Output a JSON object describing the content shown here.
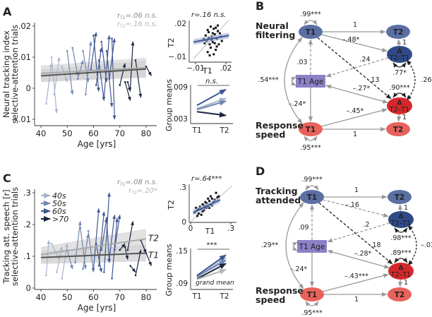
{
  "colors": {
    "g40": "#a9b4cc",
    "g50": "#7286b3",
    "g60": "#3f5692",
    "g70": "#1d2440",
    "node_blue": "#5b6fa3",
    "node_blue_dark": "#2f4a88",
    "node_age": "#8c80c6",
    "node_red": "#e8625c",
    "node_red_dark": "#d5282a",
    "path_gray": "#9a9a9a",
    "path_black": "#222222",
    "band": "#d9d9d9"
  },
  "chart_data": [
    {
      "panel": "A",
      "type": "line",
      "subtype": "longitudinal spaghetti (arrows T1→T2)",
      "letter": "A",
      "ylabel": [
        "Neural tracking index",
        "selective-attention trials"
      ],
      "xlabel": "Age [yrs]",
      "xticks": [
        "40",
        "50",
        "60",
        "70",
        "80"
      ],
      "xtick_values": [
        40,
        50,
        60,
        70,
        80
      ],
      "yticks": [
        ".02",
        ".01",
        "0",
        "−.01"
      ],
      "ytick_values": [
        0.02,
        0.01,
        0,
        -0.01
      ],
      "xlim": [
        38,
        83
      ],
      "ylim": [
        -0.012,
        0.021
      ],
      "r_labels": [
        {
          "r": "r",
          "sub": "T1",
          "value": "=.06 n.s."
        },
        {
          "r": "r",
          "sub": "T2",
          "value": "=.16 n.s."
        }
      ],
      "fit_T1": {
        "x": [
          40,
          80
        ],
        "y": [
          0.004,
          0.0062
        ]
      },
      "fit_T2": {
        "x": [
          40,
          80
        ],
        "y": [
          0.0048,
          0.0066
        ]
      },
      "subjects": [
        [
          42,
          -0.005,
          44,
          0.008,
          0
        ],
        [
          44,
          0.01,
          46,
          -0.008,
          0
        ],
        [
          45,
          -0.002,
          47,
          0.01,
          0
        ],
        [
          48,
          0.007,
          50,
          0.002,
          0
        ],
        [
          50,
          0.012,
          52,
          -0.002,
          1
        ],
        [
          52,
          0.013,
          54,
          0.004,
          1
        ],
        [
          54,
          0.003,
          56,
          0.009,
          1
        ],
        [
          56,
          0.012,
          58,
          0.002,
          1
        ],
        [
          57,
          -0.002,
          59,
          0.015,
          1
        ],
        [
          59,
          0.006,
          61,
          0.018,
          2
        ],
        [
          60,
          0.017,
          62,
          -0.001,
          2
        ],
        [
          61,
          0.001,
          63,
          0.013,
          2
        ],
        [
          62,
          0.009,
          64,
          -0.004,
          2
        ],
        [
          63,
          0.015,
          65,
          0.002,
          2
        ],
        [
          64,
          -0.003,
          66,
          0.017,
          2
        ],
        [
          65,
          0.012,
          67,
          -0.006,
          2
        ],
        [
          66,
          0.003,
          68,
          0.016,
          2
        ],
        [
          67,
          0.016,
          68,
          -0.01,
          2
        ],
        [
          70,
          0.001,
          72,
          0.008,
          3
        ],
        [
          72,
          0.002,
          74,
          -0.004,
          3
        ],
        [
          74,
          0.0,
          75,
          0.015,
          3
        ],
        [
          76,
          0.009,
          78,
          -0.003,
          3
        ],
        [
          80,
          0.007,
          82,
          0.004,
          3
        ],
        [
          73,
          0.002,
          74,
          -0.001,
          3
        ]
      ]
    },
    {
      "panel": "A-scatter",
      "type": "scatter",
      "title": "r=.16 n.s.",
      "xlabel": "T1",
      "ylabel": "T2",
      "xticks": [
        "−.01",
        ".02"
      ],
      "xtick_values": [
        -0.01,
        0.02
      ],
      "yticks": [
        ".02",
        "−.01"
      ],
      "ytick_values": [
        0.02,
        -0.01
      ],
      "xlim": [
        -0.012,
        0.023
      ],
      "ylim": [
        -0.013,
        0.021
      ],
      "fit": {
        "x": [
          -0.012,
          0.023
        ],
        "y": [
          0.003,
          0.009
        ]
      },
      "points": [
        [
          0.001,
          0.004
        ],
        [
          0.003,
          0.012
        ],
        [
          0.005,
          -0.002
        ],
        [
          0.006,
          0.008
        ],
        [
          0.008,
          0.015
        ],
        [
          0.002,
          -0.006
        ],
        [
          0.004,
          0.001
        ],
        [
          0.007,
          0.003
        ],
        [
          0.009,
          0.01
        ],
        [
          0.01,
          -0.004
        ],
        [
          0.011,
          0.006
        ],
        [
          0.012,
          0.013
        ],
        [
          0.0,
          0.009
        ],
        [
          -0.001,
          0.002
        ],
        [
          0.013,
          0.001
        ],
        [
          0.014,
          0.011
        ],
        [
          0.005,
          0.017
        ],
        [
          0.003,
          0.007
        ],
        [
          0.008,
          -0.008
        ],
        [
          0.01,
          0.016
        ],
        [
          0.006,
          0.005
        ],
        [
          0.015,
          0.008
        ],
        [
          0.002,
          0.014
        ],
        [
          0.009,
          0.002
        ],
        [
          0.004,
          -0.009
        ],
        [
          0.012,
          0.018
        ],
        [
          0.007,
          0.011
        ],
        [
          -0.002,
          0.006
        ],
        [
          0.011,
          -0.001
        ],
        [
          0.016,
          0.004
        ]
      ]
    },
    {
      "panel": "A-means",
      "type": "line",
      "ylabel": "Group means",
      "xticks": [
        "T1",
        "T2"
      ],
      "yticks": [
        ".009",
        ".003"
      ],
      "ytick_values": [
        0.009,
        0.003
      ],
      "ylim": [
        0.002,
        0.0095
      ],
      "annotation": "n.s.",
      "series": [
        {
          "group": "40s",
          "values": [
            0.0049,
            0.0068
          ]
        },
        {
          "group": "50s",
          "values": [
            0.0047,
            0.0063
          ]
        },
        {
          "group": "60s",
          "values": [
            0.0055,
            0.0085
          ]
        },
        {
          "group": ">70",
          "values": [
            0.0043,
            0.0036
          ]
        }
      ]
    },
    {
      "panel": "C",
      "type": "line",
      "subtype": "longitudinal spaghetti (arrows T1→T2)",
      "letter": "C",
      "ylabel": [
        "Tracking att. speech [r]",
        "selective-attention trials"
      ],
      "xlabel": "Age [yrs]",
      "xticks": [
        "40",
        "50",
        "60",
        "70",
        "80"
      ],
      "xtick_values": [
        40,
        50,
        60,
        70,
        80
      ],
      "yticks": [
        ".3",
        ".2",
        ".1",
        "0"
      ],
      "ytick_values": [
        0.3,
        0.2,
        0.1,
        0
      ],
      "xlim": [
        38,
        83
      ],
      "ylim": [
        0,
        0.31
      ],
      "r_labels": [
        {
          "r": "r",
          "sub": "T1",
          "value": "=.08 n.s."
        },
        {
          "r": "r",
          "sub": "T2",
          "value": "=.20*"
        }
      ],
      "legend": [
        "40s",
        "50s",
        "60s",
        ">70"
      ],
      "legend_placement": "top-left",
      "line_labels": [
        "T2",
        "T1"
      ],
      "fit_T1": {
        "x": [
          40,
          80
        ],
        "y": [
          0.096,
          0.11
        ]
      },
      "fit_T2": {
        "x": [
          40,
          80
        ],
        "y": [
          0.105,
          0.155
        ]
      },
      "subjects": [
        [
          42,
          0.04,
          43,
          0.15,
          0
        ],
        [
          44,
          0.14,
          47,
          0.09,
          0
        ],
        [
          46,
          0.05,
          48,
          0.13,
          0
        ],
        [
          48,
          0.03,
          50,
          0.14,
          0
        ],
        [
          50,
          0.12,
          52,
          0.06,
          1
        ],
        [
          53,
          0.08,
          55,
          0.21,
          1
        ],
        [
          55,
          0.19,
          57,
          0.06,
          1
        ],
        [
          56,
          0.06,
          58,
          0.17,
          1
        ],
        [
          58,
          0.18,
          60,
          0.05,
          1
        ],
        [
          60,
          0.06,
          62,
          0.25,
          2
        ],
        [
          61,
          0.14,
          63,
          0.05,
          2
        ],
        [
          62,
          0.07,
          64,
          0.24,
          2
        ],
        [
          63,
          0.12,
          65,
          0.22,
          2
        ],
        [
          64,
          0.05,
          66,
          0.3,
          2
        ],
        [
          65,
          0.22,
          66,
          0.08,
          2
        ],
        [
          66,
          0.09,
          68,
          0.23,
          2
        ],
        [
          67,
          0.03,
          69,
          0.22,
          2
        ],
        [
          68,
          0.12,
          70,
          0.23,
          2
        ],
        [
          70,
          0.12,
          72,
          0.14,
          3
        ],
        [
          72,
          0.13,
          73,
          0.09,
          3
        ],
        [
          73,
          0.12,
          75,
          0.21,
          3
        ],
        [
          74,
          0.07,
          76,
          0.05,
          3
        ],
        [
          76,
          0.04,
          78,
          0.12,
          3
        ],
        [
          78,
          0.15,
          80,
          0.11,
          3
        ],
        [
          80,
          0.11,
          82,
          0.07,
          3
        ]
      ]
    },
    {
      "panel": "C-scatter",
      "type": "scatter",
      "title": "r=.64***",
      "xlabel": "T1",
      "ylabel": "T2",
      "xticks": [
        "0",
        ".3"
      ],
      "xtick_values": [
        0,
        0.3
      ],
      "yticks": [
        ".3",
        "0"
      ],
      "ytick_values": [
        0.3,
        0
      ],
      "xlim": [
        0,
        0.31
      ],
      "ylim": [
        0,
        0.31
      ],
      "fit": {
        "x": [
          0.02,
          0.22
        ],
        "y": [
          0.08,
          0.19
        ]
      },
      "points": [
        [
          0.03,
          0.08
        ],
        [
          0.05,
          0.1
        ],
        [
          0.06,
          0.07
        ],
        [
          0.07,
          0.13
        ],
        [
          0.08,
          0.11
        ],
        [
          0.09,
          0.09
        ],
        [
          0.1,
          0.14
        ],
        [
          0.11,
          0.12
        ],
        [
          0.12,
          0.16
        ],
        [
          0.13,
          0.13
        ],
        [
          0.14,
          0.18
        ],
        [
          0.15,
          0.15
        ],
        [
          0.16,
          0.2
        ],
        [
          0.17,
          0.17
        ],
        [
          0.18,
          0.19
        ],
        [
          0.2,
          0.21
        ],
        [
          0.04,
          0.12
        ],
        [
          0.06,
          0.11
        ],
        [
          0.09,
          0.15
        ],
        [
          0.1,
          0.1
        ],
        [
          0.12,
          0.12
        ],
        [
          0.14,
          0.12
        ],
        [
          0.15,
          0.22
        ],
        [
          0.19,
          0.25
        ],
        [
          0.08,
          0.06
        ],
        [
          0.11,
          0.17
        ],
        [
          0.13,
          0.2
        ],
        [
          0.16,
          0.14
        ],
        [
          0.05,
          0.05
        ],
        [
          0.21,
          0.22
        ]
      ]
    },
    {
      "panel": "C-means",
      "type": "line",
      "ylabel": "Group means",
      "xticks": [
        "T1",
        "T2"
      ],
      "yticks": [
        ".15",
        ".09"
      ],
      "ytick_values": [
        0.15,
        0.09
      ],
      "ylim": [
        0.085,
        0.16
      ],
      "annotation": "***",
      "grand_mean_label": "grand mean",
      "series": [
        {
          "group": "40s",
          "values": [
            0.101,
            0.137
          ]
        },
        {
          "group": "50s",
          "values": [
            0.102,
            0.132
          ]
        },
        {
          "group": "60s",
          "values": [
            0.104,
            0.142
          ]
        },
        {
          "group": ">70",
          "values": [
            0.098,
            0.126
          ]
        },
        {
          "group": "grand mean",
          "values": [
            0.097,
            0.115
          ]
        }
      ]
    }
  ],
  "diagrams": [
    {
      "letter": "B",
      "top_construct": "Neural filtering",
      "top_construct_lines": [
        "Neural",
        "filtering"
      ],
      "bottom_construct_lines": [
        "Response",
        "speed"
      ],
      "nodes": {
        "t1a": "T1",
        "t2a": "T2",
        "da": [
          "Δ",
          "T2–T1"
        ],
        "age": "T1 Age",
        "db": [
          "Δ",
          "T2–T1"
        ],
        "t1b": "T1",
        "t2b": "T2"
      },
      "edges": [
        {
          "from": "t1a",
          "to": "t2a",
          "label": "1",
          "style": "solid",
          "color": "gray"
        },
        {
          "from": "t1a",
          "to": "da",
          "label": "–.48*",
          "style": "solid",
          "color": "gray"
        },
        {
          "from": "age",
          "to": "t1a",
          "label": ".03",
          "style": "dashed",
          "color": "gray"
        },
        {
          "from": "da",
          "to": "age",
          "label": ".24",
          "style": "dashed",
          "color": "gray"
        },
        {
          "from": "t1a",
          "to": "db",
          "label": ".13",
          "style": "dashed",
          "color": "black"
        },
        {
          "from": "db",
          "to": "age",
          "label": "–.27*",
          "style": "solid",
          "color": "gray",
          "both": true
        },
        {
          "from": "age",
          "to": "t1b",
          "label": "–.24*",
          "style": "solid",
          "color": "gray"
        },
        {
          "from": "t1b",
          "to": "db",
          "label": "–.45*",
          "style": "solid",
          "color": "gray"
        },
        {
          "from": "t1b",
          "to": "t2b",
          "label": "1",
          "style": "solid",
          "color": "gray"
        },
        {
          "from": "da",
          "to": "t2a",
          "label": "1",
          "style": "solid",
          "color": "gray"
        },
        {
          "from": "db",
          "to": "t2b",
          "label": "1",
          "style": "solid",
          "color": "gray"
        },
        {
          "from": "t1a",
          "to": "t1b",
          "label": ".54***",
          "style": "curved",
          "color": "gray"
        },
        {
          "from": "da",
          "to": "db",
          "label": ".26",
          "style": "curved-dashed",
          "color": "black"
        }
      ],
      "variances": {
        "t1a": ".99***",
        "da": ".77*",
        "db": ".90***",
        "t1b": ".95***"
      }
    },
    {
      "letter": "D",
      "top_construct_lines": [
        "Tracking",
        "attended"
      ],
      "bottom_construct_lines": [
        "Response",
        "speed"
      ],
      "nodes": {
        "t1a": "T1",
        "t2a": "T2",
        "da": [
          "Δ",
          "T2–T1"
        ],
        "age": "T1 Age",
        "db": [
          "Δ",
          "T2–T1"
        ],
        "t1b": "T1",
        "t2b": "T2"
      },
      "edges": [
        {
          "from": "t1a",
          "to": "t2a",
          "label": "1",
          "style": "solid",
          "color": "gray"
        },
        {
          "from": "t1a",
          "to": "da",
          "label": "–.16",
          "style": "dashed",
          "color": "gray"
        },
        {
          "from": "age",
          "to": "t1a",
          "label": ".09",
          "style": "dashed",
          "color": "gray"
        },
        {
          "from": "da",
          "to": "age",
          "label": ".2",
          "style": "dashed",
          "color": "gray"
        },
        {
          "from": "t1a",
          "to": "db",
          "label": ".18",
          "style": "dashed",
          "color": "black"
        },
        {
          "from": "db",
          "to": "age",
          "label": "–.28*",
          "style": "solid",
          "color": "gray",
          "both": true
        },
        {
          "from": "age",
          "to": "t1b",
          "label": "–.24*",
          "style": "solid",
          "color": "gray"
        },
        {
          "from": "t1b",
          "to": "db",
          "label": "–.43***",
          "style": "solid",
          "color": "gray"
        },
        {
          "from": "t1b",
          "to": "t2b",
          "label": "1",
          "style": "solid",
          "color": "gray"
        },
        {
          "from": "da",
          "to": "t2a",
          "label": "1",
          "style": "solid",
          "color": "gray"
        },
        {
          "from": "db",
          "to": "t2b",
          "label": "1",
          "style": "solid",
          "color": "gray"
        },
        {
          "from": "t1a",
          "to": "t1b",
          "label": ".29**",
          "style": "curved",
          "color": "gray"
        },
        {
          "from": "da",
          "to": "db",
          "label": "–.03",
          "style": "curved-dashed",
          "color": "black"
        }
      ],
      "variances": {
        "t1a": ".99***",
        "da": ".98***",
        "db": ".89***",
        "t1b": ".95***"
      }
    }
  ]
}
